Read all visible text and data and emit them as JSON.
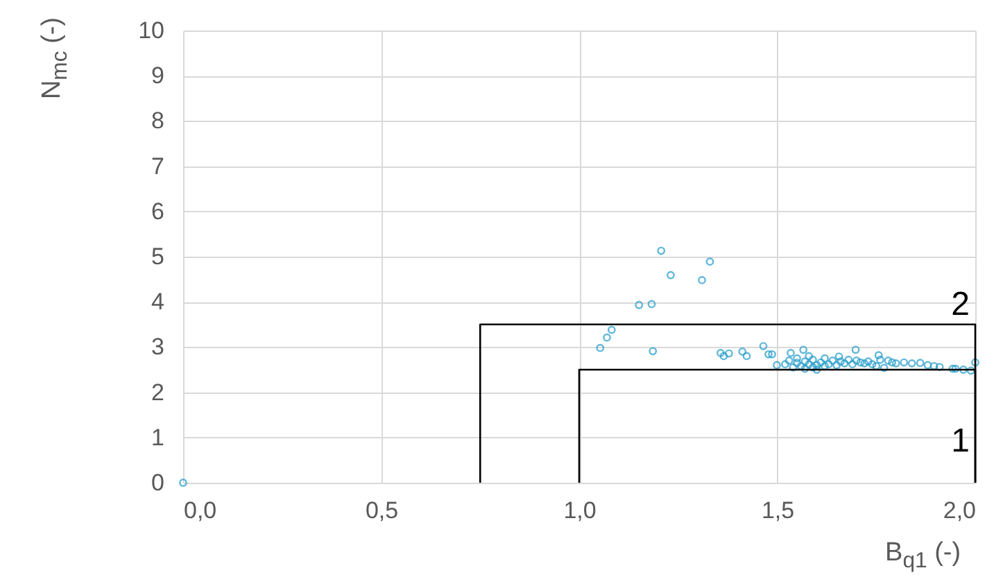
{
  "chart_data": {
    "type": "scatter",
    "xlabel": "B$_{q1}$ (-)",
    "ylabel": "N$_{mc}$ (-)",
    "xlim": [
      0,
      2
    ],
    "xticks": [
      {
        "value": 0,
        "label": "0,0"
      },
      {
        "value": 0.5,
        "label": "0,5"
      },
      {
        "value": 1,
        "label": "1,0"
      },
      {
        "value": 1.5,
        "label": "1,5"
      },
      {
        "value": 2,
        "label": "2,0"
      }
    ],
    "ylim": [
      0,
      10
    ],
    "yticks": [
      0,
      1,
      2,
      3,
      4,
      5,
      6,
      7,
      8,
      9,
      10
    ],
    "grid": true,
    "marker": "circle",
    "series": [
      {
        "color": "#1f9ac9",
        "x": [
          0,
          1.053,
          1.07,
          1.082,
          1.151,
          1.183,
          1.186,
          1.207,
          1.231,
          1.31,
          1.33,
          1.357,
          1.365,
          1.378,
          1.412,
          1.423,
          1.465,
          1.478,
          1.487,
          1.499,
          1.52,
          1.53,
          1.534,
          1.54,
          1.55,
          1.55,
          1.56,
          1.566,
          1.57,
          1.57,
          1.58,
          1.58,
          1.59,
          1.59,
          1.6,
          1.6,
          1.61,
          1.62,
          1.62,
          1.63,
          1.64,
          1.65,
          1.656,
          1.66,
          1.67,
          1.68,
          1.69,
          1.698,
          1.7,
          1.71,
          1.72,
          1.73,
          1.74,
          1.75,
          1.756,
          1.76,
          1.77,
          1.78,
          1.79,
          1.8,
          1.82,
          1.84,
          1.861,
          1.88,
          1.896,
          1.91,
          1.943,
          1.95,
          1.97,
          1.989,
          2.0
        ],
        "values": [
          0,
          2.98,
          3.21,
          3.38,
          3.93,
          3.95,
          2.91,
          5.13,
          4.59,
          4.48,
          4.89,
          2.87,
          2.8,
          2.86,
          2.9,
          2.8,
          3.02,
          2.84,
          2.84,
          2.6,
          2.62,
          2.7,
          2.87,
          2.55,
          2.65,
          2.75,
          2.58,
          2.94,
          2.68,
          2.52,
          2.8,
          2.62,
          2.55,
          2.72,
          2.6,
          2.5,
          2.66,
          2.58,
          2.75,
          2.62,
          2.7,
          2.6,
          2.79,
          2.68,
          2.64,
          2.72,
          2.62,
          2.94,
          2.7,
          2.66,
          2.64,
          2.68,
          2.62,
          2.58,
          2.82,
          2.72,
          2.54,
          2.7,
          2.66,
          2.64,
          2.66,
          2.64,
          2.65,
          2.6,
          2.58,
          2.56,
          2.52,
          2.52,
          2.5,
          2.48,
          2.66
        ]
      },
      {
        "type": "line",
        "name": "2",
        "color": "#000000",
        "marker": "none",
        "x": [
          0.75,
          0.75,
          2,
          2
        ],
        "values": [
          0,
          3.5,
          3.5,
          0
        ]
      },
      {
        "type": "line",
        "name": "1",
        "color": "#000000",
        "marker": "none",
        "x": [
          1,
          1,
          2,
          2
        ],
        "values": [
          0,
          2.5,
          2.5,
          0
        ]
      }
    ]
  }
}
